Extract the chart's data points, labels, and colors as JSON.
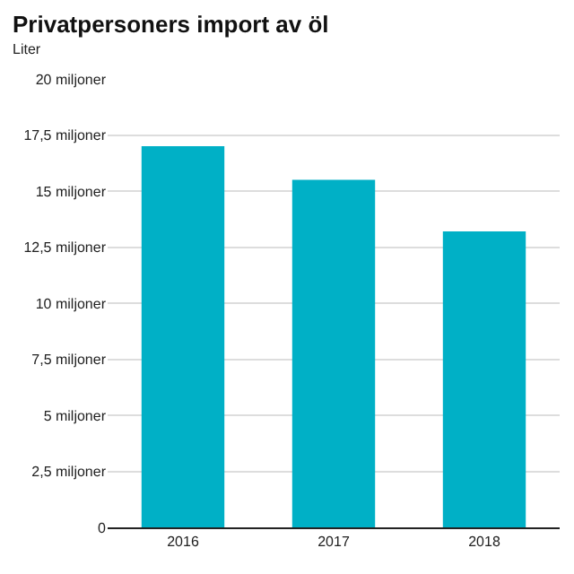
{
  "chart_data": {
    "type": "bar",
    "title": "Privatpersoners import av öl",
    "subtitle": "Liter",
    "categories": [
      "2016",
      "2017",
      "2018"
    ],
    "values": [
      17.0,
      15.5,
      13.2
    ],
    "color": "#00b0c6",
    "ylim": [
      0,
      20
    ],
    "yticks": [
      {
        "value": 0,
        "label": "0"
      },
      {
        "value": 2.5,
        "label": "2,5 miljoner"
      },
      {
        "value": 5,
        "label": "5 miljoner"
      },
      {
        "value": 7.5,
        "label": "7,5 miljoner"
      },
      {
        "value": 10,
        "label": "10 miljoner"
      },
      {
        "value": 12.5,
        "label": "12,5 miljoner"
      },
      {
        "value": 15,
        "label": "15 miljoner"
      },
      {
        "value": 17.5,
        "label": "17,5 miljoner"
      },
      {
        "value": 20,
        "label": "20 miljoner"
      }
    ],
    "grid": "y"
  }
}
